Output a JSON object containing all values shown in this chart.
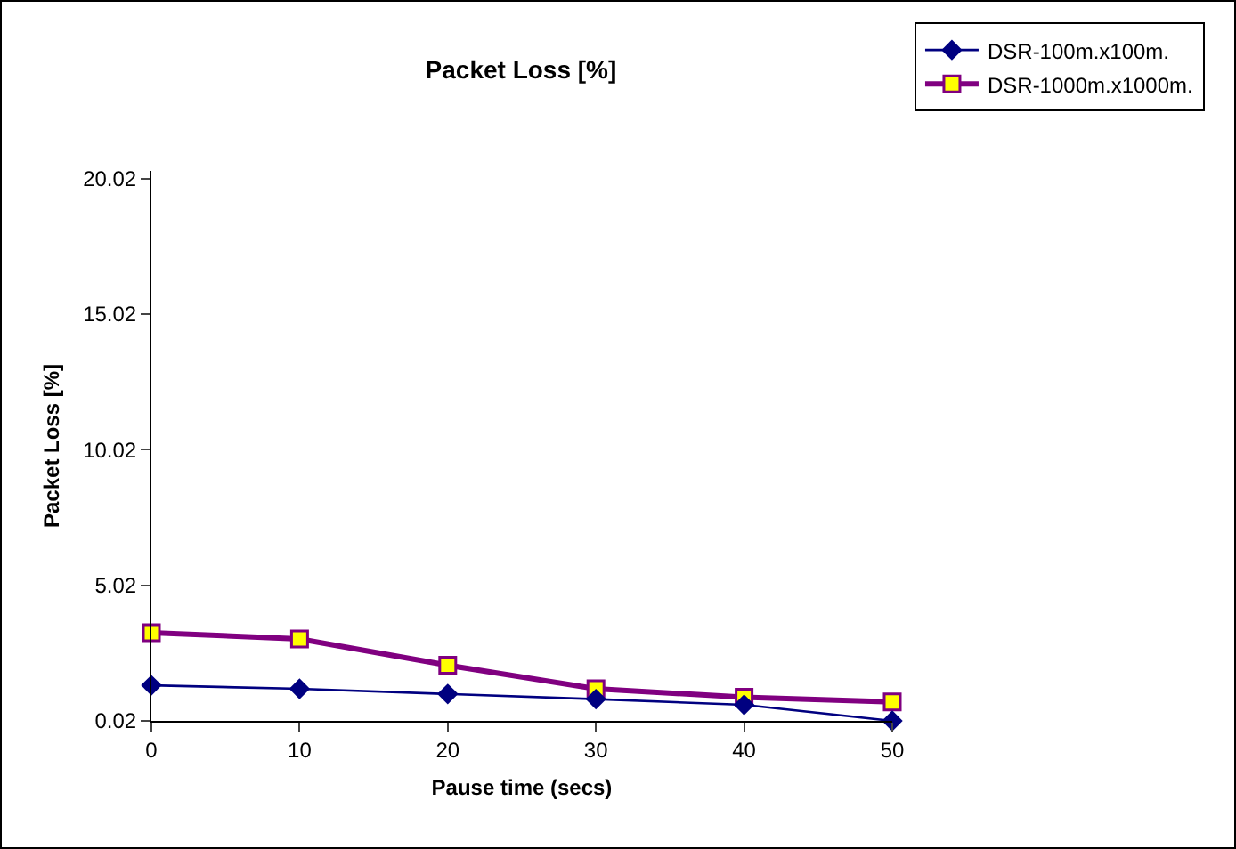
{
  "chart_data": {
    "type": "line",
    "title": "Packet Loss [%]",
    "xlabel": "Pause time (secs)",
    "ylabel": "Packet Loss [%]",
    "x": [
      0,
      10,
      20,
      30,
      40,
      50
    ],
    "xlim": [
      0,
      50
    ],
    "xticks": [
      0,
      10,
      20,
      30,
      40,
      50
    ],
    "ylim": [
      0.02,
      20.3
    ],
    "yticks": [
      0.02,
      5.02,
      10.02,
      15.02,
      20.02
    ],
    "grid": false,
    "legend": "top right",
    "series": [
      {
        "name": "DSR-100m.x100m.",
        "color": "#000080",
        "marker": "diamond",
        "values": [
          1.33,
          1.2,
          1.01,
          0.82,
          0.61,
          0.02
        ]
      },
      {
        "name": "DSR-1000m.x1000m.",
        "color": "#800080",
        "marker": "square",
        "values": [
          3.27,
          3.04,
          2.07,
          1.2,
          0.89,
          0.72
        ]
      }
    ]
  }
}
